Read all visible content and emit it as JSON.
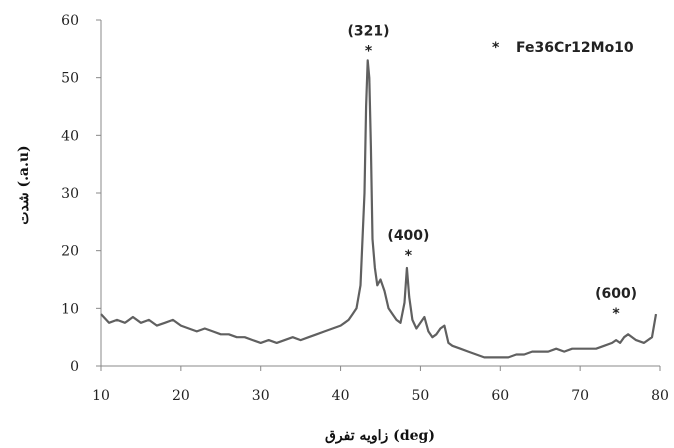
{
  "chart_data": {
    "type": "line",
    "title": "",
    "xlabel": "(deg) زاويه تفرق",
    "ylabel": "(a.u.) شدت",
    "xlim": [
      10,
      80
    ],
    "ylim": [
      0,
      60
    ],
    "xticks": [
      10,
      20,
      30,
      40,
      50,
      60,
      70,
      80
    ],
    "yticks": [
      0,
      10,
      20,
      30,
      40,
      50,
      60
    ],
    "grid": false,
    "legend": {
      "position": "top-right",
      "marker": "*",
      "label": "Fe36Cr12Mo10"
    },
    "line_color": "#606060",
    "series": [
      {
        "x": [
          10,
          11,
          12,
          13,
          14,
          15,
          16,
          17,
          18,
          19,
          20,
          21,
          22,
          23,
          24,
          25,
          26,
          27,
          28,
          29,
          30,
          31,
          32,
          33,
          34,
          35,
          36,
          37,
          38,
          39,
          40,
          40.5,
          41,
          41.5,
          42,
          42.5,
          43,
          43.2,
          43.4,
          43.6,
          43.8,
          44,
          44.3,
          44.6,
          45,
          45.5,
          46,
          46.5,
          47,
          47.5,
          48,
          48.3,
          48.6,
          49,
          49.5,
          50,
          50.5,
          51,
          51.5,
          52,
          52.5,
          53,
          53.5,
          54,
          55,
          56,
          57,
          58,
          59,
          60,
          61,
          62,
          63,
          64,
          65,
          66,
          67,
          68,
          69,
          70,
          71,
          72,
          73,
          74,
          74.5,
          75,
          75.5,
          76,
          77,
          78,
          79,
          79.5
        ],
        "y": [
          9,
          7.5,
          8,
          7.5,
          8.5,
          7.5,
          8,
          7,
          7.5,
          8,
          7,
          6.5,
          6,
          6.5,
          6,
          5.5,
          5.5,
          5,
          5,
          4.5,
          4,
          4.5,
          4,
          4.5,
          5,
          4.5,
          5,
          5.5,
          6,
          6.5,
          7,
          7.5,
          8,
          9,
          10,
          14,
          30,
          45,
          53,
          50,
          38,
          22,
          17,
          14,
          15,
          13,
          10,
          9,
          8,
          7.5,
          11,
          17,
          12,
          8,
          6.5,
          7.5,
          8.5,
          6,
          5,
          5.5,
          6.5,
          7,
          4,
          3.5,
          3,
          2.5,
          2,
          1.5,
          1.5,
          1.5,
          1.5,
          2,
          2,
          2.5,
          2.5,
          2.5,
          3,
          2.5,
          3,
          3,
          3,
          3,
          3.5,
          4,
          4.5,
          4,
          5,
          5.5,
          4.5,
          4,
          5,
          9
        ]
      }
    ],
    "annotations": [
      {
        "label": "(321)",
        "x": 43.5,
        "y": 53.5
      },
      {
        "label": "(400)",
        "x": 48.5,
        "y": 18
      },
      {
        "label": "(600)",
        "x": 74.5,
        "y": 8
      }
    ]
  }
}
